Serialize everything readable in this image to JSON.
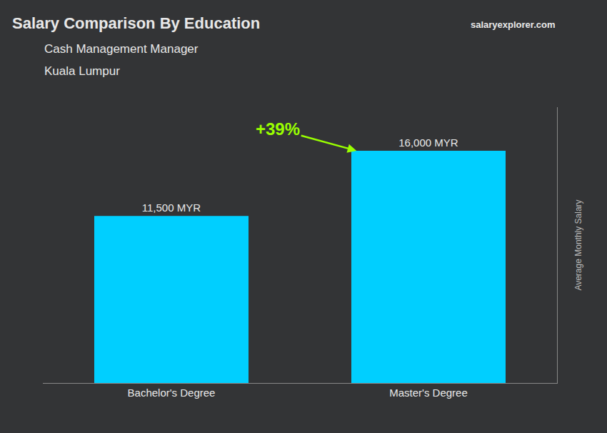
{
  "chart_data": {
    "type": "bar",
    "title": "Salary Comparison By Education",
    "subtitle": [
      "Cash Management Manager",
      "Kuala Lumpur"
    ],
    "ylabel": "Average Monthly Salary",
    "annotations": [
      "+39%",
      "salaryexplorer.com"
    ],
    "categories": [
      "Bachelor's Degree",
      "Master's Degree"
    ],
    "values": [
      11500,
      16000
    ],
    "value_labels": [
      "11,500 MYR",
      "16,000 MYR"
    ],
    "data_labels": true,
    "color": "#00CFFF",
    "ylim": [
      0,
      19000
    ],
    "tick_labels": "x",
    "grid": false
  }
}
